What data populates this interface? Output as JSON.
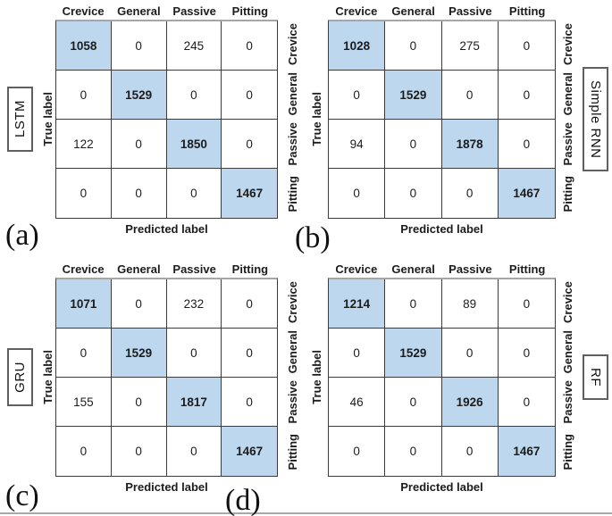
{
  "classes": [
    "Crevice",
    "General",
    "Passive",
    "Pitting"
  ],
  "axes": {
    "xlabel": "Predicted label",
    "ylabel": "True label"
  },
  "chart_data": [
    {
      "id": "a",
      "type": "heatmap",
      "title": "LSTM",
      "caption": "(a)",
      "model_side": "left",
      "xlabel": "Predicted label",
      "ylabel": "True label",
      "x_categories": [
        "Crevice",
        "General",
        "Passive",
        "Pitting"
      ],
      "y_categories": [
        "Crevice",
        "General",
        "Passive",
        "Pitting"
      ],
      "values": [
        [
          1058,
          0,
          245,
          0
        ],
        [
          0,
          1529,
          0,
          0
        ],
        [
          122,
          0,
          1850,
          0
        ],
        [
          0,
          0,
          0,
          1467
        ]
      ],
      "highlight": "diagonal"
    },
    {
      "id": "b",
      "type": "heatmap",
      "title": "Simple RNN",
      "caption": "(b)",
      "model_side": "right",
      "xlabel": "Predicted label",
      "ylabel": "True label",
      "x_categories": [
        "Crevice",
        "General",
        "Passive",
        "Pitting"
      ],
      "y_categories": [
        "Crevice",
        "General",
        "Passive",
        "Pitting"
      ],
      "values": [
        [
          1028,
          0,
          275,
          0
        ],
        [
          0,
          1529,
          0,
          0
        ],
        [
          94,
          0,
          1878,
          0
        ],
        [
          0,
          0,
          0,
          1467
        ]
      ],
      "highlight": "diagonal"
    },
    {
      "id": "c",
      "type": "heatmap",
      "title": "GRU",
      "caption": "(c)",
      "model_side": "left",
      "xlabel": "Predicted label",
      "ylabel": "True label",
      "x_categories": [
        "Crevice",
        "General",
        "Passive",
        "Pitting"
      ],
      "y_categories": [
        "Crevice",
        "General",
        "Passive",
        "Pitting"
      ],
      "values": [
        [
          1071,
          0,
          232,
          0
        ],
        [
          0,
          1529,
          0,
          0
        ],
        [
          155,
          0,
          1817,
          0
        ],
        [
          0,
          0,
          0,
          1467
        ]
      ],
      "highlight": "diagonal"
    },
    {
      "id": "d",
      "type": "heatmap",
      "title": "RF",
      "caption": "(d)",
      "model_side": "right",
      "xlabel": "Predicted label",
      "ylabel": "True label",
      "x_categories": [
        "Crevice",
        "General",
        "Passive",
        "Pitting"
      ],
      "y_categories": [
        "Crevice",
        "General",
        "Passive",
        "Pitting"
      ],
      "values": [
        [
          1214,
          0,
          89,
          0
        ],
        [
          0,
          1529,
          0,
          0
        ],
        [
          46,
          0,
          1926,
          0
        ],
        [
          0,
          0,
          0,
          1467
        ]
      ],
      "highlight": "diagonal"
    }
  ],
  "colors": {
    "diagonal_fill": "#bdd7ee",
    "grid_line": "#3c3c3c",
    "matrix_top_border": "#a6a6a6",
    "model_box_border": "#606060",
    "bottom_rule": "#a8a8a8"
  }
}
